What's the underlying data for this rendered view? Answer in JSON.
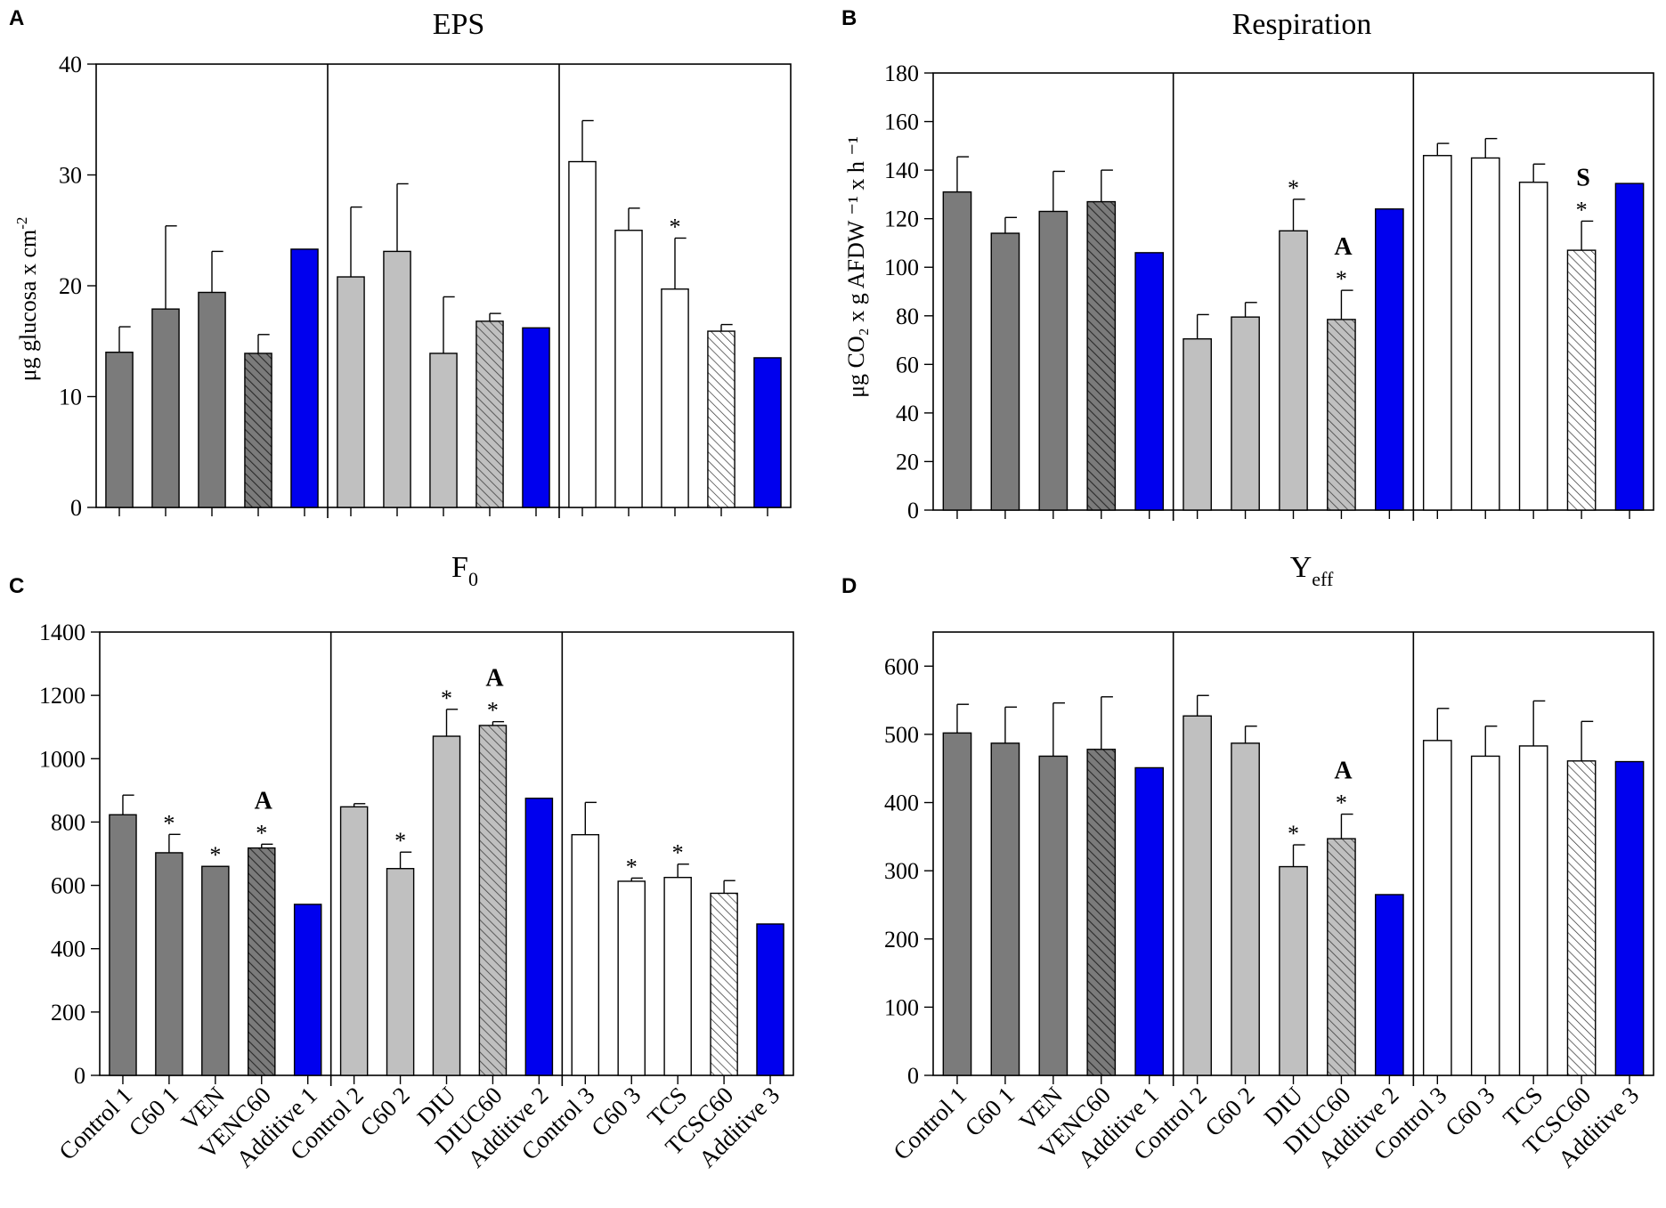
{
  "figure": {
    "categories": [
      "Control 1",
      "C60 1",
      "VEN",
      "VENC60",
      "Additive 1",
      "Control 2",
      "C60 2",
      "DIU",
      "DIUC60",
      "Additive 2",
      "Control 3",
      "C60 3",
      "TCS",
      "TCSC60",
      "Additive 3"
    ],
    "colors": {
      "group1": "#7b7b7b",
      "group2": "#c0c0c0",
      "group3": "#ffffff",
      "additive": "#0000ee",
      "outline": "#000000"
    }
  },
  "chart_data": [
    {
      "type": "bar",
      "panel": "A",
      "title": "EPS",
      "ylabel": "μg glucosa x cm",
      "ylabel_sup": "-2",
      "ylim": [
        0,
        40
      ],
      "yticks": [
        0,
        10,
        20,
        30,
        40
      ],
      "categories": [
        "Control 1",
        "C60 1",
        "VEN",
        "VENC60",
        "Additive 1",
        "Control 2",
        "C60 2",
        "DIU",
        "DIUC60",
        "Additive 2",
        "Control 3",
        "C60 3",
        "TCS",
        "TCSC60",
        "Additive 3"
      ],
      "values": [
        14,
        17.9,
        19.4,
        13.9,
        23.3,
        20.8,
        23.1,
        13.9,
        16.8,
        16.2,
        31.2,
        25,
        19.7,
        15.9,
        13.5
      ],
      "errors": [
        2.3,
        7.5,
        3.7,
        1.7,
        0,
        6.3,
        6.1,
        5.1,
        0.7,
        0,
        3.7,
        2,
        4.6,
        0.6,
        0
      ],
      "stars": [
        "",
        "",
        "",
        "",
        "",
        "",
        "",
        "",
        "",
        "",
        "",
        "",
        "*",
        "",
        ""
      ],
      "letters": [
        "",
        "",
        "",
        "",
        "",
        "",
        "",
        "",
        "",
        "",
        "",
        "",
        "",
        "",
        ""
      ],
      "show_xlabels": false
    },
    {
      "type": "bar",
      "panel": "B",
      "title": "Respiration",
      "ylabel": "μg CO₂ x g AFDW ⁻¹ x h ⁻¹",
      "ylim": [
        0,
        180
      ],
      "yticks": [
        0,
        20,
        40,
        60,
        80,
        100,
        120,
        140,
        160,
        180
      ],
      "categories": [
        "Control 1",
        "C60 1",
        "VEN",
        "VENC60",
        "Additive 1",
        "Control 2",
        "C60 2",
        "DIU",
        "DIUC60",
        "Additive 2",
        "Control 3",
        "C60 3",
        "TCS",
        "TCSC60",
        "Additive 3"
      ],
      "values": [
        131,
        114,
        123,
        127,
        106,
        70.5,
        79.5,
        115,
        78.5,
        124,
        146,
        145,
        135,
        107,
        134.5
      ],
      "errors": [
        14.5,
        6.5,
        16.5,
        13,
        0,
        10,
        6,
        13,
        12,
        0,
        5,
        8,
        7.5,
        12,
        0
      ],
      "stars": [
        "",
        "",
        "",
        "",
        "",
        "",
        "",
        "*",
        "*",
        "",
        "",
        "",
        "",
        "*",
        ""
      ],
      "letters": [
        "",
        "",
        "",
        "",
        "",
        "",
        "",
        "",
        "A",
        "",
        "",
        "",
        "",
        "S",
        ""
      ],
      "show_xlabels": false
    },
    {
      "type": "bar",
      "panel": "C",
      "title": "F",
      "title_sub": "0",
      "ylabel": "",
      "ylim": [
        0,
        1400
      ],
      "yticks": [
        0,
        200,
        400,
        600,
        800,
        1000,
        1200,
        1400
      ],
      "categories": [
        "Control 1",
        "C60 1",
        "VEN",
        "VENC60",
        "Additive 1",
        "Control 2",
        "C60 2",
        "DIU",
        "DIUC60",
        "Additive 2",
        "Control 3",
        "C60 3",
        "TCS",
        "TCSC60",
        "Additive 3"
      ],
      "values": [
        823,
        703,
        660,
        718,
        540,
        848,
        653,
        1071,
        1105,
        875,
        760,
        613,
        625,
        575,
        478
      ],
      "errors": [
        62,
        58,
        0,
        12,
        0,
        10,
        52,
        85,
        12,
        0,
        102,
        10,
        42,
        40,
        0
      ],
      "stars": [
        "",
        "*",
        "*",
        "*",
        "",
        "",
        "*",
        "*",
        "*",
        "",
        "",
        "*",
        "*",
        "",
        ""
      ],
      "letters": [
        "",
        "",
        "",
        "A",
        "",
        "",
        "",
        "",
        "A",
        "",
        "",
        "",
        "",
        "",
        ""
      ],
      "show_xlabels": true
    },
    {
      "type": "bar",
      "panel": "D",
      "title": "Y",
      "title_sub": "eff",
      "ylabel": "",
      "ylim": [
        0,
        650
      ],
      "yticks": [
        0,
        100,
        200,
        300,
        400,
        500,
        600
      ],
      "categories": [
        "Control 1",
        "C60 1",
        "VEN",
        "VENC60",
        "Additive 1",
        "Control 2",
        "C60 2",
        "DIU",
        "DIUC60",
        "Additive 2",
        "Control 3",
        "C60 3",
        "TCS",
        "TCSC60",
        "Additive 3"
      ],
      "values": [
        502,
        487,
        468,
        478,
        451,
        527,
        487,
        306,
        347,
        265,
        491,
        468,
        483,
        461,
        460
      ],
      "errors": [
        42,
        53,
        78,
        77,
        0,
        30,
        25,
        32,
        36,
        0,
        47,
        44,
        66,
        58,
        0
      ],
      "stars": [
        "",
        "",
        "",
        "",
        "",
        "",
        "",
        "*",
        "*",
        "",
        "",
        "",
        "",
        "",
        ""
      ],
      "letters": [
        "",
        "",
        "",
        "",
        "",
        "",
        "",
        "",
        "A",
        "",
        "",
        "",
        "",
        "",
        ""
      ],
      "show_xlabels": true
    }
  ]
}
